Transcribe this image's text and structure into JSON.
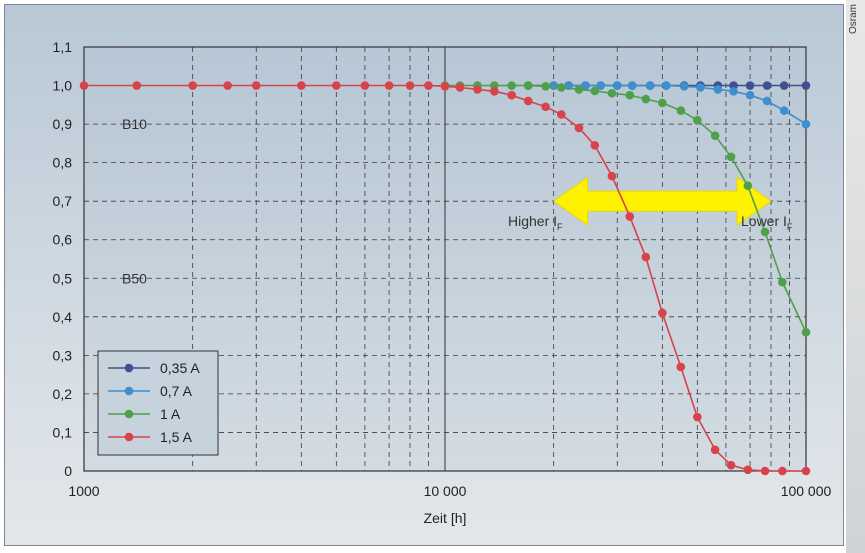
{
  "side_text": "Osram",
  "chart_data": {
    "type": "line",
    "title": "",
    "xlabel": "Zeit [h]",
    "ylabel": "",
    "xscale": "log",
    "xlim": [
      1000,
      100000
    ],
    "ylim": [
      0,
      1.1
    ],
    "grid": true,
    "legend_position": "bottom-left",
    "x_ticks": [
      {
        "value": 1000,
        "label": "1000"
      },
      {
        "value": 10000,
        "label": "10 000"
      },
      {
        "value": 100000,
        "label": "100 000"
      }
    ],
    "y_ticks": [
      {
        "value": 0,
        "label": "0"
      },
      {
        "value": 0.1,
        "label": "0,1"
      },
      {
        "value": 0.2,
        "label": "0,2"
      },
      {
        "value": 0.3,
        "label": "0,3"
      },
      {
        "value": 0.4,
        "label": "0,4"
      },
      {
        "value": 0.5,
        "label": "0,5"
      },
      {
        "value": 0.6,
        "label": "0,6"
      },
      {
        "value": 0.7,
        "label": "0,7"
      },
      {
        "value": 0.8,
        "label": "0,8"
      },
      {
        "value": 0.9,
        "label": "0,9"
      },
      {
        "value": 1.0,
        "label": "1,0"
      },
      {
        "value": 1.1,
        "label": "1,1"
      }
    ],
    "reference_lines": [
      {
        "label": "B10",
        "y": 0.9
      },
      {
        "label": "B50",
        "y": 0.5
      }
    ],
    "annotations": [
      {
        "text": "Higher I",
        "subscript": "F",
        "x": 23000,
        "y": 0.7
      },
      {
        "text": "Lower I",
        "subscript": "F",
        "x": 70000,
        "y": 0.7
      }
    ],
    "arrow": {
      "from_x": 20000,
      "to_x": 80000,
      "y": 0.7,
      "color": "#fff200"
    },
    "series": [
      {
        "name": "0,35 A",
        "color": "#3f4f8f",
        "x": [
          17000,
          20000,
          22000,
          24500,
          27000,
          30000,
          33000,
          37000,
          41000,
          46000,
          51000,
          57000,
          63000,
          70000,
          78000,
          87000,
          100000
        ],
        "y": [
          1.0,
          1.0,
          1.0,
          1.0,
          1.0,
          1.0,
          1.0,
          1.0,
          1.0,
          1.0,
          1.0,
          1.0,
          1.0,
          1.0,
          1.0,
          1.0,
          1.0
        ]
      },
      {
        "name": "0,7 A",
        "color": "#3f8ed0",
        "x": [
          20000,
          22000,
          24500,
          27000,
          30000,
          33000,
          37000,
          41000,
          46000,
          51000,
          57000,
          63000,
          70000,
          78000,
          87000,
          100000
        ],
        "y": [
          1.0,
          1.0,
          1.0,
          1.0,
          1.0,
          1.0,
          1.0,
          1.0,
          0.998,
          0.995,
          0.99,
          0.985,
          0.975,
          0.96,
          0.935,
          0.9
        ]
      },
      {
        "name": "1 A",
        "color": "#4fa04a",
        "x": [
          10000,
          11000,
          12300,
          13700,
          15300,
          17000,
          19000,
          21000,
          23500,
          26000,
          29000,
          32500,
          36000,
          40000,
          45000,
          50000,
          56000,
          62000,
          69000,
          77000,
          86000,
          100000
        ],
        "y": [
          1.0,
          1.0,
          1.0,
          1.0,
          1.0,
          1.0,
          0.998,
          0.995,
          0.99,
          0.986,
          0.98,
          0.975,
          0.965,
          0.955,
          0.935,
          0.91,
          0.87,
          0.815,
          0.74,
          0.62,
          0.49,
          0.36
        ]
      },
      {
        "name": "1,5 A",
        "color": "#d8424a",
        "x": [
          1000,
          1400,
          2000,
          2500,
          3000,
          4000,
          5000,
          6000,
          7000,
          8000,
          9000,
          10000,
          11000,
          12300,
          13700,
          15300,
          17000,
          19000,
          21000,
          23500,
          26000,
          29000,
          32500,
          36000,
          40000,
          45000,
          50000,
          56000,
          62000,
          69000,
          77000,
          86000,
          100000
        ],
        "y": [
          1.0,
          1.0,
          1.0,
          1.0,
          1.0,
          1.0,
          1.0,
          1.0,
          1.0,
          1.0,
          1.0,
          0.998,
          0.995,
          0.99,
          0.985,
          0.975,
          0.96,
          0.945,
          0.925,
          0.89,
          0.845,
          0.765,
          0.66,
          0.555,
          0.41,
          0.27,
          0.14,
          0.055,
          0.015,
          0.003,
          0.0,
          0.0,
          0.0
        ]
      }
    ]
  }
}
